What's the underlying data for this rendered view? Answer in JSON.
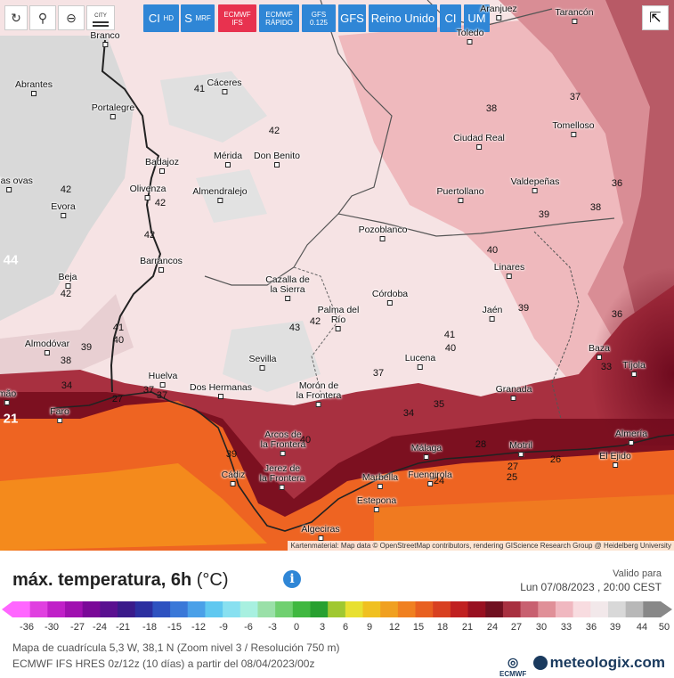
{
  "toolbar": {
    "city_label": "CITY"
  },
  "models": [
    {
      "label": "CI",
      "sub": "HD"
    },
    {
      "label": "S",
      "sub": "MRF"
    },
    {
      "label": "ECMWF",
      "sub": "IFS"
    },
    {
      "label": "ECMWF",
      "sub": "RÁPIDO"
    },
    {
      "label": "GFS",
      "sub": "0.125"
    },
    {
      "label": "GFS",
      "sub": ""
    },
    {
      "label": "Reino Unido",
      "sub": ""
    },
    {
      "label": "CI",
      "sub": ""
    },
    {
      "label": "UM",
      "sub": ""
    }
  ],
  "map": {
    "cities": [
      "Aranjuez",
      "Tarancón",
      "Toledo",
      "Branco",
      "Abrantes",
      "Cáceres",
      "Portalegre",
      "Tomelloso",
      "Ciudad Real",
      "Badajoz",
      "Mérida",
      "Don Benito",
      "Valdepeñas",
      "Puertollano",
      "Olivenza",
      "Almendralejo",
      "Evora",
      "endas ovas",
      "Pozoblanco",
      "Barrancos",
      "Linares",
      "Beja",
      "Cazalla de la Sierra",
      "Córdoba",
      "Jaén",
      "Palma del Río",
      "Almodóvar",
      "Baza",
      "Sevilla",
      "Lucena",
      "Tíjola",
      "Huelva",
      "Dos Hermanas",
      "Morón de la Frontera",
      "Granada",
      "mão",
      "Faro",
      "Almería",
      "Arcos de la Frontera",
      "Málaga",
      "Motril",
      "El Ejido",
      "Cádiz",
      "Jerez de la Frontera",
      "Marbella",
      "Fuengirola",
      "Estepona",
      "Algeciras"
    ],
    "isotherms": [
      "41",
      "37",
      "38",
      "42",
      "42",
      "36",
      "42",
      "39",
      "38",
      "42",
      "44",
      "40",
      "42",
      "39",
      "36",
      "42",
      "43",
      "41",
      "40",
      "41",
      "39",
      "40",
      "37",
      "38",
      "34",
      "37",
      "37",
      "33",
      "21",
      "27",
      "34",
      "35",
      "26",
      "39",
      "40",
      "28",
      "27",
      "25",
      "24"
    ],
    "attribution": "Kartenmaterial: Map data © OpenStreetMap contributors, rendering GIScience Research Group @ Heidelberg University"
  },
  "legend": {
    "title": "máx. temperatura, 6h",
    "unit": "(°C)",
    "valid_label": "Valido para",
    "valid_date": "Lun 07/08/2023 , 20:00 CEST",
    "ticks": [
      "-36",
      "-30",
      "-27",
      "-24",
      "-21",
      "-18",
      "-15",
      "-12",
      "-9",
      "-6",
      "-3",
      "0",
      "3",
      "6",
      "9",
      "12",
      "15",
      "18",
      "21",
      "24",
      "27",
      "30",
      "33",
      "36",
      "39",
      "44",
      "50"
    ],
    "grid_info": "Mapa de cuadrícula 5,3 W, 38,1 N (Zoom nivel 3 / Resolución 750 m)",
    "model_info": "ECMWF IFS HRES 0z/12z (10 días) a partir del 08/04/2023/00z",
    "ecmwf_logo": "ECMWF",
    "brand": "meteologix.com",
    "colors": {
      "cold_end": "#ff66ff",
      "hot_end": "#888888",
      "button": "#2f86d6",
      "active_button": "#e8324f"
    }
  }
}
